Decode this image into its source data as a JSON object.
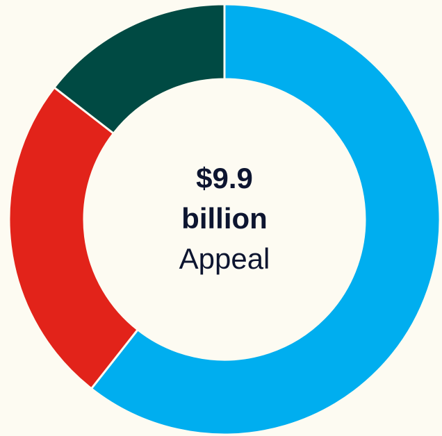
{
  "chart_data": {
    "type": "pie",
    "variant": "donut",
    "center_text": {
      "amount": "$9.9",
      "unit": "billion",
      "label": "Appeal"
    },
    "slices": [
      {
        "value": 0.606,
        "color": "#00aeef"
      },
      {
        "value": 0.249,
        "color": "#e2231a"
      },
      {
        "value": 0.145,
        "color": "#004a43"
      }
    ]
  }
}
